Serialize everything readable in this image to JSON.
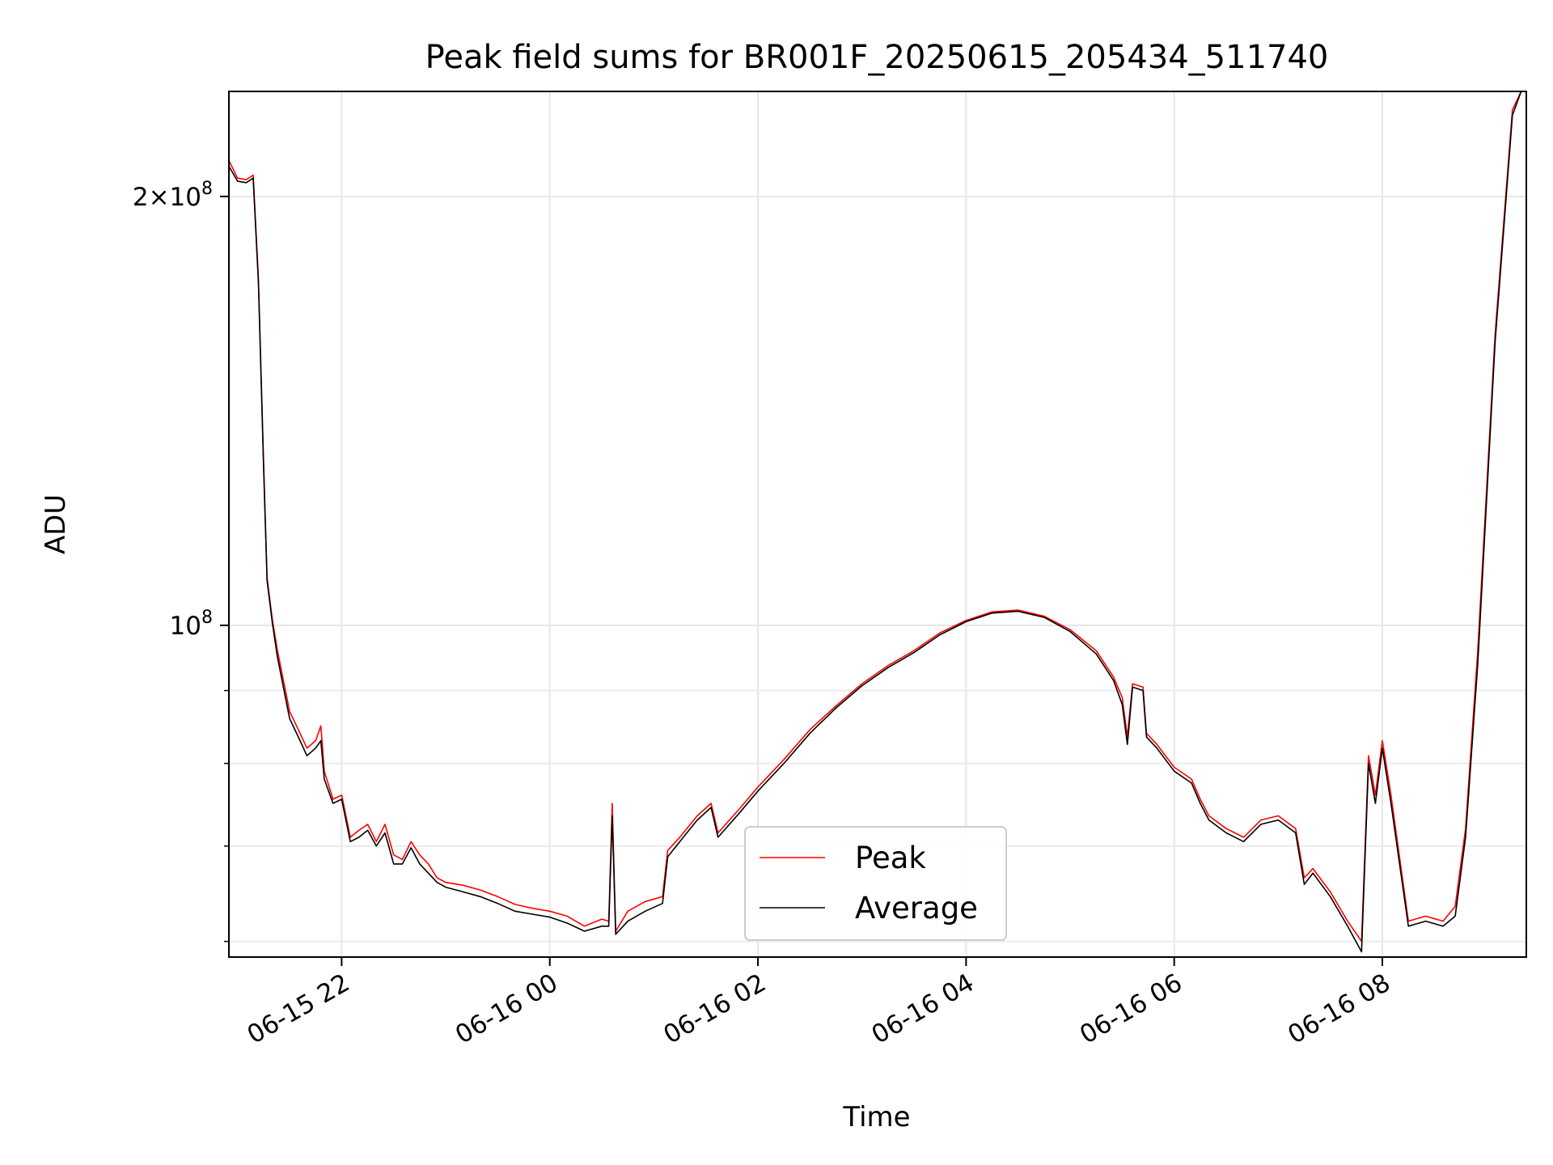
{
  "chart_data": {
    "type": "line",
    "title": "Peak field sums for BR001F_20250615_205434_511740",
    "xlabel": "Time",
    "ylabel": "ADU",
    "y_scale": "log",
    "xlim": [
      "2025-06-15 20:55",
      "2025-06-16 09:23"
    ],
    "ylim": [
      58500000,
      237000000
    ],
    "x_ticks": [
      "06-15 22",
      "06-16 00",
      "06-16 02",
      "06-16 04",
      "06-16 06",
      "06-16 08"
    ],
    "y_ticks": [
      {
        "value": 100000000,
        "label": "10^8"
      },
      {
        "value": 200000000,
        "label": "2×10^8"
      }
    ],
    "grid": true,
    "legend": {
      "placement": "lower center"
    },
    "colors": {
      "Peak": "#ff0000",
      "Average": "#000000"
    },
    "series": [
      {
        "name": "Peak",
        "points": [
          [
            "2025-06-15 20:55",
            212000000
          ],
          [
            "2025-06-15 21:00",
            206000000
          ],
          [
            "2025-06-15 21:05",
            205500000
          ],
          [
            "2025-06-15 21:09",
            207000000
          ],
          [
            "2025-06-15 21:12",
            175000000
          ],
          [
            "2025-06-15 21:15",
            130000000
          ],
          [
            "2025-06-15 21:17",
            108000000
          ],
          [
            "2025-06-15 21:20",
            101000000
          ],
          [
            "2025-06-15 21:23",
            96000000
          ],
          [
            "2025-06-15 21:26",
            92000000
          ],
          [
            "2025-06-15 21:30",
            87000000
          ],
          [
            "2025-06-15 21:35",
            84500000
          ],
          [
            "2025-06-15 21:40",
            82000000
          ],
          [
            "2025-06-15 21:45",
            83000000
          ],
          [
            "2025-06-15 21:48",
            85000000
          ],
          [
            "2025-06-15 21:50",
            79000000
          ],
          [
            "2025-06-15 21:55",
            75500000
          ],
          [
            "2025-06-15 22:00",
            76000000
          ],
          [
            "2025-06-15 22:05",
            71000000
          ],
          [
            "2025-06-15 22:10",
            71800000
          ],
          [
            "2025-06-15 22:15",
            72500000
          ],
          [
            "2025-06-15 22:20",
            70500000
          ],
          [
            "2025-06-15 22:25",
            72500000
          ],
          [
            "2025-06-15 22:30",
            69000000
          ],
          [
            "2025-06-15 22:35",
            68500000
          ],
          [
            "2025-06-15 22:40",
            70500000
          ],
          [
            "2025-06-15 22:45",
            69000000
          ],
          [
            "2025-06-15 22:50",
            68000000
          ],
          [
            "2025-06-15 22:55",
            66500000
          ],
          [
            "2025-06-15 23:00",
            66000000
          ],
          [
            "2025-06-15 23:10",
            65700000
          ],
          [
            "2025-06-15 23:20",
            65200000
          ],
          [
            "2025-06-15 23:30",
            64500000
          ],
          [
            "2025-06-15 23:40",
            63700000
          ],
          [
            "2025-06-15 23:50",
            63300000
          ],
          [
            "2025-06-16 00:00",
            63000000
          ],
          [
            "2025-06-16 00:10",
            62500000
          ],
          [
            "2025-06-16 00:20",
            61500000
          ],
          [
            "2025-06-16 00:30",
            62200000
          ],
          [
            "2025-06-16 00:34",
            62000000
          ],
          [
            "2025-06-16 00:36",
            75000000
          ],
          [
            "2025-06-16 00:38",
            61000000
          ],
          [
            "2025-06-16 00:45",
            63000000
          ],
          [
            "2025-06-16 00:55",
            64000000
          ],
          [
            "2025-06-16 01:05",
            64500000
          ],
          [
            "2025-06-16 01:08",
            69500000
          ],
          [
            "2025-06-16 01:15",
            71000000
          ],
          [
            "2025-06-16 01:25",
            73500000
          ],
          [
            "2025-06-16 01:33",
            75000000
          ],
          [
            "2025-06-16 01:37",
            71500000
          ],
          [
            "2025-06-16 01:50",
            74500000
          ],
          [
            "2025-06-16 02:00",
            77000000
          ],
          [
            "2025-06-16 02:15",
            80500000
          ],
          [
            "2025-06-16 02:30",
            84500000
          ],
          [
            "2025-06-16 02:45",
            87800000
          ],
          [
            "2025-06-16 03:00",
            91000000
          ],
          [
            "2025-06-16 03:15",
            93700000
          ],
          [
            "2025-06-16 03:30",
            96000000
          ],
          [
            "2025-06-16 03:45",
            98800000
          ],
          [
            "2025-06-16 04:00",
            100800000
          ],
          [
            "2025-06-16 04:15",
            102200000
          ],
          [
            "2025-06-16 04:30",
            102500000
          ],
          [
            "2025-06-16 04:45",
            101500000
          ],
          [
            "2025-06-16 05:00",
            99300000
          ],
          [
            "2025-06-16 05:15",
            96000000
          ],
          [
            "2025-06-16 05:25",
            92000000
          ],
          [
            "2025-06-16 05:30",
            89000000
          ],
          [
            "2025-06-16 05:33",
            83500000
          ],
          [
            "2025-06-16 05:36",
            91000000
          ],
          [
            "2025-06-16 05:42",
            90500000
          ],
          [
            "2025-06-16 05:44",
            84000000
          ],
          [
            "2025-06-16 05:50",
            82500000
          ],
          [
            "2025-06-16 06:00",
            79500000
          ],
          [
            "2025-06-16 06:10",
            78000000
          ],
          [
            "2025-06-16 06:15",
            75500000
          ],
          [
            "2025-06-16 06:20",
            73500000
          ],
          [
            "2025-06-16 06:30",
            72000000
          ],
          [
            "2025-06-16 06:40",
            71000000
          ],
          [
            "2025-06-16 06:50",
            73000000
          ],
          [
            "2025-06-16 07:00",
            73500000
          ],
          [
            "2025-06-16 07:10",
            72000000
          ],
          [
            "2025-06-16 07:15",
            66500000
          ],
          [
            "2025-06-16 07:20",
            67500000
          ],
          [
            "2025-06-16 07:30",
            65000000
          ],
          [
            "2025-06-16 07:40",
            62000000
          ],
          [
            "2025-06-16 07:48",
            60000000
          ],
          [
            "2025-06-16 07:52",
            81000000
          ],
          [
            "2025-06-16 07:56",
            76000000
          ],
          [
            "2025-06-16 08:00",
            83000000
          ],
          [
            "2025-06-16 08:05",
            76000000
          ],
          [
            "2025-06-16 08:15",
            62000000
          ],
          [
            "2025-06-16 08:25",
            62500000
          ],
          [
            "2025-06-16 08:35",
            62000000
          ],
          [
            "2025-06-16 08:42",
            63500000
          ],
          [
            "2025-06-16 08:48",
            72000000
          ],
          [
            "2025-06-16 08:55",
            96000000
          ],
          [
            "2025-06-16 09:05",
            160000000
          ],
          [
            "2025-06-16 09:15",
            230000000
          ],
          [
            "2025-06-16 09:20",
            237000000
          ]
        ]
      },
      {
        "name": "Average",
        "points": [
          [
            "2025-06-15 20:55",
            210000000
          ],
          [
            "2025-06-15 21:00",
            205000000
          ],
          [
            "2025-06-15 21:05",
            204500000
          ],
          [
            "2025-06-15 21:09",
            206000000
          ],
          [
            "2025-06-15 21:12",
            174000000
          ],
          [
            "2025-06-15 21:15",
            129000000
          ],
          [
            "2025-06-15 21:17",
            107500000
          ],
          [
            "2025-06-15 21:20",
            100500000
          ],
          [
            "2025-06-15 21:23",
            95000000
          ],
          [
            "2025-06-15 21:26",
            91000000
          ],
          [
            "2025-06-15 21:30",
            86000000
          ],
          [
            "2025-06-15 21:35",
            83500000
          ],
          [
            "2025-06-15 21:40",
            81000000
          ],
          [
            "2025-06-15 21:45",
            82000000
          ],
          [
            "2025-06-15 21:48",
            83000000
          ],
          [
            "2025-06-15 21:50",
            78000000
          ],
          [
            "2025-06-15 21:55",
            75000000
          ],
          [
            "2025-06-15 22:00",
            75500000
          ],
          [
            "2025-06-15 22:05",
            70500000
          ],
          [
            "2025-06-15 22:10",
            71000000
          ],
          [
            "2025-06-15 22:15",
            71800000
          ],
          [
            "2025-06-15 22:20",
            70000000
          ],
          [
            "2025-06-15 22:25",
            71500000
          ],
          [
            "2025-06-15 22:30",
            68000000
          ],
          [
            "2025-06-15 22:35",
            68000000
          ],
          [
            "2025-06-15 22:40",
            69800000
          ],
          [
            "2025-06-15 22:45",
            68000000
          ],
          [
            "2025-06-15 22:50",
            67000000
          ],
          [
            "2025-06-15 22:55",
            66000000
          ],
          [
            "2025-06-15 23:00",
            65500000
          ],
          [
            "2025-06-15 23:10",
            65000000
          ],
          [
            "2025-06-15 23:20",
            64500000
          ],
          [
            "2025-06-15 23:30",
            63800000
          ],
          [
            "2025-06-15 23:40",
            63000000
          ],
          [
            "2025-06-15 23:50",
            62700000
          ],
          [
            "2025-06-16 00:00",
            62400000
          ],
          [
            "2025-06-16 00:10",
            61800000
          ],
          [
            "2025-06-16 00:20",
            61000000
          ],
          [
            "2025-06-16 00:30",
            61500000
          ],
          [
            "2025-06-16 00:34",
            61500000
          ],
          [
            "2025-06-16 00:36",
            73500000
          ],
          [
            "2025-06-16 00:38",
            60700000
          ],
          [
            "2025-06-16 00:45",
            62000000
          ],
          [
            "2025-06-16 00:55",
            63000000
          ],
          [
            "2025-06-16 01:05",
            63800000
          ],
          [
            "2025-06-16 01:08",
            68800000
          ],
          [
            "2025-06-16 01:15",
            70500000
          ],
          [
            "2025-06-16 01:25",
            73000000
          ],
          [
            "2025-06-16 01:33",
            74500000
          ],
          [
            "2025-06-16 01:37",
            71000000
          ],
          [
            "2025-06-16 01:50",
            74000000
          ],
          [
            "2025-06-16 02:00",
            76500000
          ],
          [
            "2025-06-16 02:15",
            80000000
          ],
          [
            "2025-06-16 02:30",
            84000000
          ],
          [
            "2025-06-16 02:45",
            87500000
          ],
          [
            "2025-06-16 03:00",
            90700000
          ],
          [
            "2025-06-16 03:15",
            93400000
          ],
          [
            "2025-06-16 03:30",
            95700000
          ],
          [
            "2025-06-16 03:45",
            98500000
          ],
          [
            "2025-06-16 04:00",
            100600000
          ],
          [
            "2025-06-16 04:15",
            102000000
          ],
          [
            "2025-06-16 04:30",
            102300000
          ],
          [
            "2025-06-16 04:45",
            101300000
          ],
          [
            "2025-06-16 05:00",
            99000000
          ],
          [
            "2025-06-16 05:15",
            95500000
          ],
          [
            "2025-06-16 05:25",
            91500000
          ],
          [
            "2025-06-16 05:30",
            88000000
          ],
          [
            "2025-06-16 05:33",
            82500000
          ],
          [
            "2025-06-16 05:36",
            90500000
          ],
          [
            "2025-06-16 05:42",
            90000000
          ],
          [
            "2025-06-16 05:44",
            83500000
          ],
          [
            "2025-06-16 05:50",
            82000000
          ],
          [
            "2025-06-16 06:00",
            79000000
          ],
          [
            "2025-06-16 06:10",
            77500000
          ],
          [
            "2025-06-16 06:15",
            75000000
          ],
          [
            "2025-06-16 06:20",
            73000000
          ],
          [
            "2025-06-16 06:30",
            71500000
          ],
          [
            "2025-06-16 06:40",
            70500000
          ],
          [
            "2025-06-16 06:50",
            72500000
          ],
          [
            "2025-06-16 07:00",
            73000000
          ],
          [
            "2025-06-16 07:10",
            71500000
          ],
          [
            "2025-06-16 07:15",
            65800000
          ],
          [
            "2025-06-16 07:20",
            67000000
          ],
          [
            "2025-06-16 07:30",
            64500000
          ],
          [
            "2025-06-16 07:40",
            61500000
          ],
          [
            "2025-06-16 07:48",
            59000000
          ],
          [
            "2025-06-16 07:52",
            80000000
          ],
          [
            "2025-06-16 07:56",
            75000000
          ],
          [
            "2025-06-16 08:00",
            82000000
          ],
          [
            "2025-06-16 08:05",
            75000000
          ],
          [
            "2025-06-16 08:15",
            61500000
          ],
          [
            "2025-06-16 08:25",
            62000000
          ],
          [
            "2025-06-16 08:35",
            61500000
          ],
          [
            "2025-06-16 08:42",
            62500000
          ],
          [
            "2025-06-16 08:48",
            71000000
          ],
          [
            "2025-06-16 08:55",
            94000000
          ],
          [
            "2025-06-16 09:05",
            158000000
          ],
          [
            "2025-06-16 09:15",
            228000000
          ],
          [
            "2025-06-16 09:20",
            237000000
          ]
        ]
      }
    ]
  }
}
